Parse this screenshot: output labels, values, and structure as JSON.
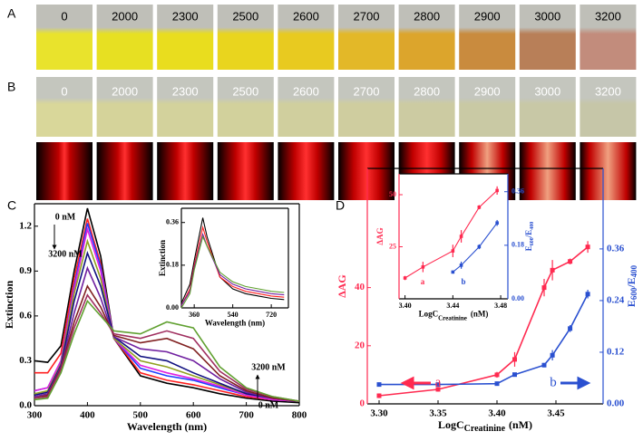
{
  "panel_labels": [
    "A",
    "B",
    "C",
    "D"
  ],
  "concentrations_A": [
    "0",
    "2000",
    "2300",
    "2500",
    "2600",
    "2700",
    "2800",
    "2900",
    "3000",
    "3200"
  ],
  "concentrations_B": [
    "0",
    "2000",
    "2300",
    "2500",
    "2600",
    "2700",
    "2800",
    "2900",
    "3000",
    "3200"
  ],
  "chart_data": [
    {
      "type": "line",
      "x_label": "Wavelength (nm)",
      "y_label": "Extinction",
      "xlim": [
        300,
        800
      ],
      "ylim": [
        0,
        1.35
      ],
      "xticks": [
        300,
        400,
        500,
        600,
        700,
        800
      ],
      "yticks": [
        {
          "value": 0,
          "label": "0.0"
        },
        0.3,
        0.6,
        0.9,
        1.2
      ],
      "x": [
        300,
        325,
        350,
        375,
        400,
        425,
        450,
        500,
        550,
        600,
        650,
        700,
        750,
        800
      ],
      "series": [
        {
          "color": "#000000",
          "values": [
            0.3,
            0.29,
            0.4,
            0.9,
            1.32,
            1.0,
            0.45,
            0.2,
            0.15,
            0.12,
            0.08,
            0.05,
            0.03,
            0.02
          ]
        },
        {
          "color": "#ff2020",
          "values": [
            0.22,
            0.22,
            0.35,
            0.85,
            1.25,
            0.95,
            0.45,
            0.22,
            0.17,
            0.14,
            0.1,
            0.06,
            0.04,
            0.03
          ]
        },
        {
          "color": "#2040ff",
          "values": [
            0.1,
            0.12,
            0.3,
            0.8,
            1.22,
            0.93,
            0.45,
            0.25,
            0.2,
            0.17,
            0.12,
            0.07,
            0.04,
            0.03
          ]
        },
        {
          "color": "#e020e0",
          "values": [
            0.1,
            0.12,
            0.3,
            0.78,
            1.18,
            0.9,
            0.45,
            0.27,
            0.22,
            0.18,
            0.13,
            0.07,
            0.04,
            0.03
          ]
        },
        {
          "color": "#90a020",
          "values": [
            0.08,
            0.1,
            0.28,
            0.75,
            1.1,
            0.85,
            0.45,
            0.3,
            0.26,
            0.2,
            0.14,
            0.08,
            0.05,
            0.03
          ]
        },
        {
          "color": "#101080",
          "values": [
            0.07,
            0.09,
            0.27,
            0.7,
            1.02,
            0.8,
            0.46,
            0.33,
            0.3,
            0.22,
            0.15,
            0.08,
            0.05,
            0.03
          ]
        },
        {
          "color": "#7020a0",
          "values": [
            0.06,
            0.08,
            0.26,
            0.62,
            0.92,
            0.72,
            0.46,
            0.38,
            0.36,
            0.3,
            0.18,
            0.09,
            0.05,
            0.03
          ]
        },
        {
          "color": "#802020",
          "values": [
            0.05,
            0.07,
            0.25,
            0.56,
            0.8,
            0.66,
            0.47,
            0.42,
            0.45,
            0.38,
            0.2,
            0.1,
            0.05,
            0.03
          ]
        },
        {
          "color": "#a03060",
          "values": [
            0.05,
            0.06,
            0.24,
            0.52,
            0.74,
            0.62,
            0.48,
            0.45,
            0.5,
            0.45,
            0.23,
            0.11,
            0.06,
            0.03
          ]
        },
        {
          "color": "#60a030",
          "values": [
            0.04,
            0.05,
            0.22,
            0.48,
            0.7,
            0.6,
            0.5,
            0.48,
            0.56,
            0.52,
            0.26,
            0.12,
            0.06,
            0.03
          ]
        }
      ],
      "annotations": [
        "0 nM",
        "3200 nM",
        "3200 nM",
        "0 nM"
      ]
    },
    {
      "type": "line",
      "x_label": "Wavelength (nm)",
      "y_label": "Extinction",
      "xlim": [
        300,
        800
      ],
      "ylim": [
        0,
        0.42
      ],
      "xticks": [
        360,
        540,
        720
      ],
      "yticks": [
        {
          "value": 0,
          "label": "0.00"
        },
        0.18,
        0.36
      ],
      "x": [
        300,
        340,
        360,
        400,
        420,
        480,
        540,
        600,
        660,
        720,
        780
      ],
      "series": [
        {
          "color": "#000000",
          "values": [
            0.02,
            0.1,
            0.2,
            0.38,
            0.3,
            0.13,
            0.08,
            0.06,
            0.05,
            0.04,
            0.035
          ]
        },
        {
          "color": "#ff2020",
          "values": [
            0.01,
            0.08,
            0.18,
            0.34,
            0.28,
            0.13,
            0.09,
            0.07,
            0.06,
            0.05,
            0.045
          ]
        },
        {
          "color": "#7020a0",
          "values": [
            0.01,
            0.07,
            0.17,
            0.31,
            0.26,
            0.14,
            0.1,
            0.08,
            0.07,
            0.06,
            0.055
          ]
        },
        {
          "color": "#60a030",
          "values": [
            0.0,
            0.06,
            0.16,
            0.3,
            0.26,
            0.15,
            0.11,
            0.09,
            0.08,
            0.07,
            0.065
          ]
        }
      ]
    },
    {
      "type": "line",
      "x_label": "LogC",
      "x_label_sub": "Creatinine",
      "x_label_unit": "(nM)",
      "y_label": "ΔAG",
      "y2_label_parts": [
        "E",
        "600",
        "/E",
        "400"
      ],
      "xlim": [
        3.29,
        3.49
      ],
      "ylim": [
        0,
        81
      ],
      "y2lim": [
        0,
        0.547
      ],
      "xticks": [
        {
          "value": 3.3,
          "label": "3.30"
        },
        3.35,
        {
          "value": 3.4,
          "label": "3.40"
        },
        3.45
      ],
      "yticks": [
        0,
        20,
        40
      ],
      "y2ticks": [
        {
          "value": 0,
          "label": "0.00"
        },
        0.12,
        0.24,
        0.36
      ],
      "markers": true,
      "x": [
        3.3,
        3.35,
        3.4,
        3.415,
        3.44,
        3.447,
        3.462,
        3.477
      ],
      "series": [
        {
          "color": "#ff2a50",
          "values": [
            2.8,
            5,
            10,
            15.3,
            40,
            46,
            49,
            54
          ],
          "errors": [
            0.8,
            0.8,
            1,
            2.5,
            3,
            3.5,
            1,
            2
          ]
        },
        {
          "color": "#2a50d0",
          "axis": "y2",
          "values": [
            0.045,
            0.045,
            0.047,
            0.068,
            0.09,
            0.113,
            0.175,
            0.255
          ],
          "errors": [
            0.003,
            0.003,
            0.003,
            0.004,
            0.005,
            0.012,
            0.008,
            0.01
          ]
        }
      ],
      "annotations": [
        "a",
        "b"
      ]
    },
    {
      "type": "line",
      "x_label": "LogC",
      "x_label_sub": "Creatinine",
      "x_label_unit": "(nM)",
      "y_label": "ΔAG",
      "y2_label_parts": [
        "E",
        "600",
        "/E",
        "400"
      ],
      "xlim": [
        3.395,
        3.486
      ],
      "ylim": [
        0,
        60
      ],
      "y2lim": [
        0,
        0.42
      ],
      "xticks": [
        {
          "value": 3.4,
          "label": "3.40"
        },
        3.44,
        3.48
      ],
      "yticks": [
        25,
        50
      ],
      "y2ticks": [
        {
          "value": 0,
          "label": "0.00"
        },
        0.18,
        0.36
      ],
      "markers": true,
      "x": [
        3.4,
        3.415,
        3.44,
        3.447,
        3.462,
        3.477
      ],
      "series": [
        {
          "color": "#ff2a50",
          "values": [
            10,
            15.3,
            23,
            30,
            44,
            52
          ],
          "errors": [
            1,
            2.5,
            3,
            3,
            1,
            2
          ]
        },
        {
          "color": "#2a50d0",
          "axis": "y2",
          "values": [
            null,
            null,
            0.09,
            0.113,
            0.175,
            0.255
          ],
          "errors": [
            null,
            null,
            0.005,
            0.012,
            0.008,
            0.01
          ]
        }
      ],
      "annotations": [
        "a",
        "b"
      ]
    }
  ]
}
